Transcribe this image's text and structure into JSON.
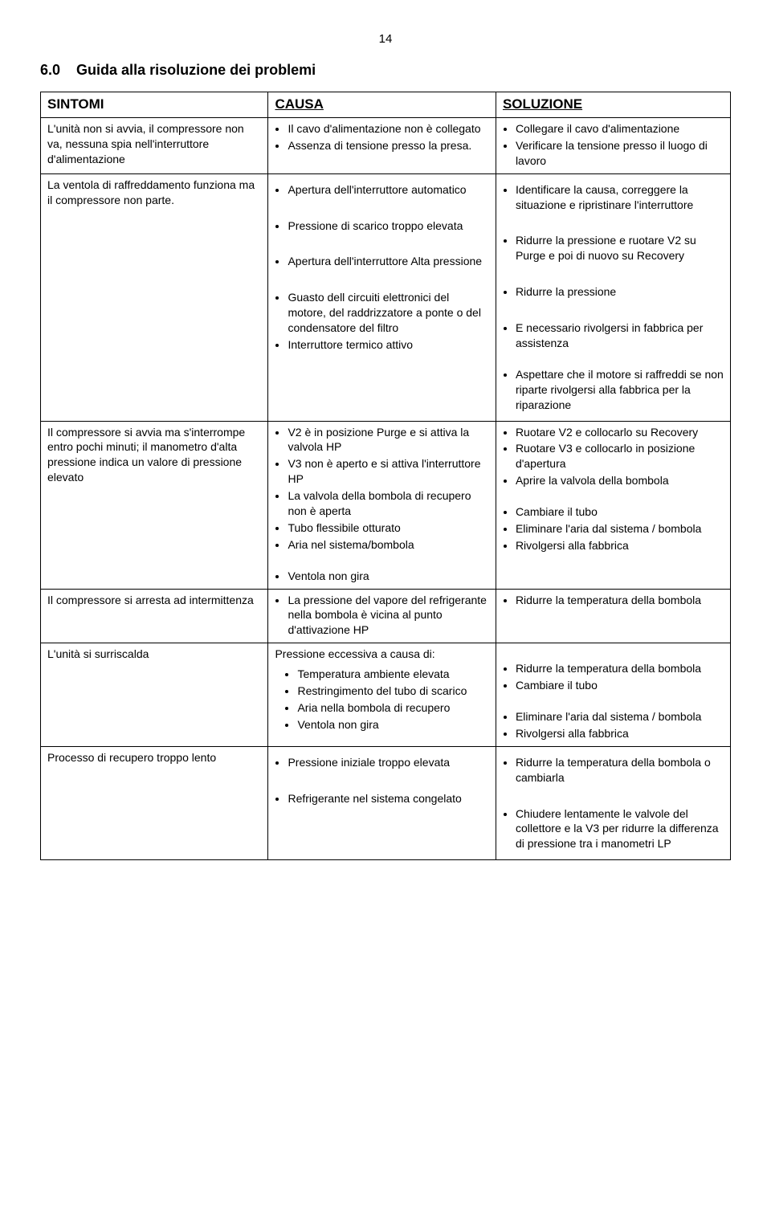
{
  "page_number": "14",
  "section_number": "6.0",
  "section_title": "Guida alla risoluzione dei problemi",
  "headers": {
    "col1": "SINTOMI",
    "col2": "CAUSA",
    "col3": "SOLUZIONE"
  },
  "rows": [
    {
      "sintomi": "L'unità non si avvia, il compressore non va, nessuna spia nell'interruttore d'alimentazione",
      "causa": [
        "Il cavo d'alimentazione non è collegato",
        "Assenza di tensione presso la presa."
      ],
      "soluzione": [
        "Collegare il cavo d'alimentazione",
        "Verificare la tensione presso il luogo di lavoro"
      ]
    },
    {
      "sintomi": "La ventola di raffreddamento funziona ma il compressore non parte.",
      "causa_groups": [
        [
          "Apertura dell'interruttore automatico"
        ],
        [
          "Pressione di scarico troppo elevata"
        ],
        [
          "Apertura dell'interruttore Alta pressione"
        ],
        [
          "Guasto dell circuiti elettronici del motore, del raddrizzatore a ponte o del condensatore del filtro",
          "Interruttore termico attivo"
        ]
      ],
      "soluzione_groups": [
        [
          "Identificare la causa, correggere la situazione e ripristinare l'interruttore"
        ],
        [
          "Ridurre la pressione e ruotare V2 su Purge e poi di nuovo su Recovery"
        ],
        [
          "Ridurre la pressione"
        ],
        [
          "E necessario rivolgersi in fabbrica per assistenza",
          "_SPACER_",
          "Aspettare che il motore si raffreddi se non riparte rivolgersi alla fabbrica per la riparazione"
        ]
      ]
    },
    {
      "sintomi": "Il compressore si avvia ma s'interrompe entro pochi minuti; il manometro d'alta pressione indica un valore di pressione elevato",
      "causa": [
        "V2 è in posizione Purge e si attiva la valvola HP",
        "V3 non è aperto e si attiva l'interruttore HP",
        "La valvola della bombola di recupero non è aperta",
        "Tubo flessibile otturato",
        "Aria nel sistema/bombola",
        "_SPACER_",
        "Ventola non gira"
      ],
      "soluzione": [
        "Ruotare V2 e collocarlo su Recovery",
        "Ruotare V3 e collocarlo in posizione d'apertura",
        "Aprire la valvola della bombola",
        "_SPACER_",
        "Cambiare il tubo",
        "Eliminare l'aria dal sistema / bombola",
        "Rivolgersi alla fabbrica"
      ]
    },
    {
      "sintomi": "Il compressore si arresta ad intermittenza",
      "causa": [
        "La pressione del vapore del refrigerante nella bombola è vicina al punto d'attivazione HP"
      ],
      "soluzione": [
        "Ridurre la temperatura della bombola"
      ]
    },
    {
      "sintomi": "L'unità si surriscalda",
      "causa_intro": "Pressione eccessiva a causa di:",
      "causa": [
        "Temperatura ambiente elevata",
        "Restringimento del tubo di scarico",
        "Aria nella bombola di recupero",
        "Ventola non gira"
      ],
      "soluzione": [
        "_SPACER_",
        "Ridurre la temperatura della bombola",
        "Cambiare il tubo",
        "_SPACER_",
        "Eliminare l'aria dal sistema / bombola",
        "Rivolgersi alla fabbrica"
      ]
    },
    {
      "sintomi": "Processo di recupero troppo lento",
      "causa_groups": [
        [
          "Pressione iniziale troppo elevata"
        ],
        [
          "Refrigerante nel sistema congelato"
        ]
      ],
      "soluzione_groups": [
        [
          "Ridurre la temperatura della bombola o cambiarla"
        ],
        [
          "Chiudere lentamente le valvole del collettore e la V3 per ridurre la differenza di pressione tra i manometri LP"
        ]
      ]
    }
  ]
}
